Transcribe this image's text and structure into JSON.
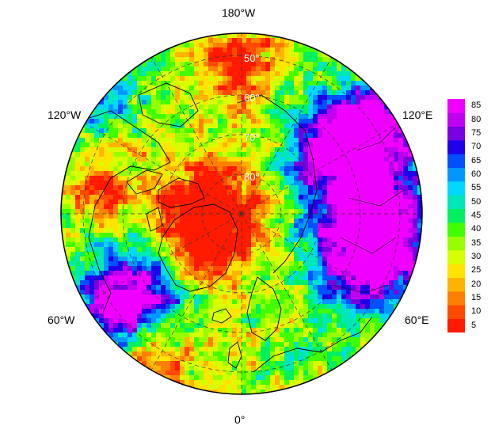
{
  "map": {
    "projection": "north-polar-stereographic",
    "longitude_labels": [
      {
        "name": "lon-180w",
        "text": "180°W"
      },
      {
        "name": "lon-120w",
        "text": "120°W"
      },
      {
        "name": "lon-120e",
        "text": "120°E"
      },
      {
        "name": "lon-60w",
        "text": "60°W"
      },
      {
        "name": "lon-60e",
        "text": "60°E"
      },
      {
        "name": "lon-0",
        "text": "0°"
      }
    ],
    "latitude_labels": [
      "50°",
      "60°",
      "70°",
      "80°"
    ],
    "colors": {
      "land_outline": "#000000",
      "grid": "#333333"
    }
  },
  "colorbar": {
    "ticks": [
      "85",
      "80",
      "75",
      "70",
      "65",
      "60",
      "55",
      "50",
      "45",
      "40",
      "35",
      "30",
      "25",
      "20",
      "15",
      "10",
      "5"
    ],
    "min": 2.5,
    "max": 87.5,
    "colors": [
      "#ff1a00",
      "#ff4a00",
      "#ff8000",
      "#ffb400",
      "#ffe400",
      "#d8ff00",
      "#96ff00",
      "#40ff00",
      "#00f060",
      "#00e8b8",
      "#00d8ff",
      "#0098ff",
      "#0050ff",
      "#2000e8",
      "#7800e0",
      "#c000f0",
      "#f000ff"
    ]
  }
}
